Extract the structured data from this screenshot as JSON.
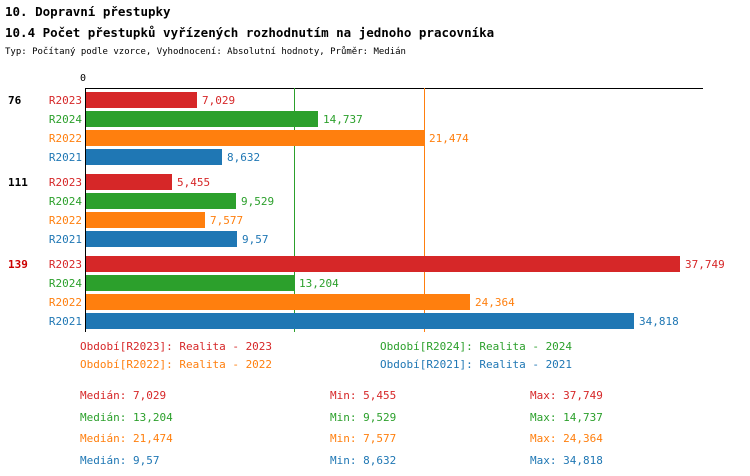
{
  "title": "10. Dopravní přestupky",
  "subtitle": "10.4 Počet přestupků vyřízených rozhodnutím na jednoho pracovníka",
  "meta": "Typ: Počítaný podle vzorce, Vyhodnocení: Absolutní hodnoty, Průměr: Medián",
  "axis": {
    "zero_label": "0"
  },
  "colors": {
    "R2023": "#d62728",
    "R2024": "#2ca02c",
    "R2022": "#ff7f0e",
    "R2021": "#1f77b4"
  },
  "chart_data": {
    "type": "bar",
    "orientation": "horizontal",
    "value_format": "czech-decimal-comma",
    "axis_max": 39,
    "series_order": [
      "R2023",
      "R2024",
      "R2022",
      "R2021"
    ],
    "groups": [
      {
        "label": "76",
        "label_color": "#000000",
        "bars": [
          {
            "series": "R2023",
            "value": 7.029,
            "display": "7,029"
          },
          {
            "series": "R2024",
            "value": 14.737,
            "display": "14,737"
          },
          {
            "series": "R2022",
            "value": 21.474,
            "display": "21,474"
          },
          {
            "series": "R2021",
            "value": 8.632,
            "display": "8,632"
          }
        ]
      },
      {
        "label": "111",
        "label_color": "#000000",
        "bars": [
          {
            "series": "R2023",
            "value": 5.455,
            "display": "5,455"
          },
          {
            "series": "R2024",
            "value": 9.529,
            "display": "9,529"
          },
          {
            "series": "R2022",
            "value": 7.577,
            "display": "7,577"
          },
          {
            "series": "R2021",
            "value": 9.57,
            "display": "9,57"
          }
        ]
      },
      {
        "label": "139",
        "label_color": "#cc0000",
        "bars": [
          {
            "series": "R2023",
            "value": 37.749,
            "display": "37,749"
          },
          {
            "series": "R2024",
            "value": 13.204,
            "display": "13,204"
          },
          {
            "series": "R2022",
            "value": 24.364,
            "display": "24,364"
          },
          {
            "series": "R2021",
            "value": 34.818,
            "display": "34,818"
          }
        ]
      }
    ],
    "median_lines": [
      {
        "series": "R2024",
        "value": 13.204
      },
      {
        "series": "R2022",
        "value": 21.474
      }
    ]
  },
  "legend": [
    {
      "series": "R2023",
      "label": "Období[R2023]: Realita - 2023"
    },
    {
      "series": "R2024",
      "label": "Období[R2024]: Realita - 2024"
    },
    {
      "series": "R2022",
      "label": "Období[R2022]: Realita - 2022"
    },
    {
      "series": "R2021",
      "label": "Období[R2021]: Realita - 2021"
    }
  ],
  "stats": [
    {
      "series": "R2023",
      "cells": [
        "Medián: 7,029",
        "Min: 5,455",
        "Max: 37,749"
      ]
    },
    {
      "series": "R2024",
      "cells": [
        "Medián: 13,204",
        "Min: 9,529",
        "Max: 14,737"
      ]
    },
    {
      "series": "R2022",
      "cells": [
        "Medián: 21,474",
        "Min: 7,577",
        "Max: 24,364"
      ]
    },
    {
      "series": "R2021",
      "cells": [
        "Medián: 9,57",
        "Min: 8,632",
        "Max: 34,818"
      ]
    }
  ]
}
